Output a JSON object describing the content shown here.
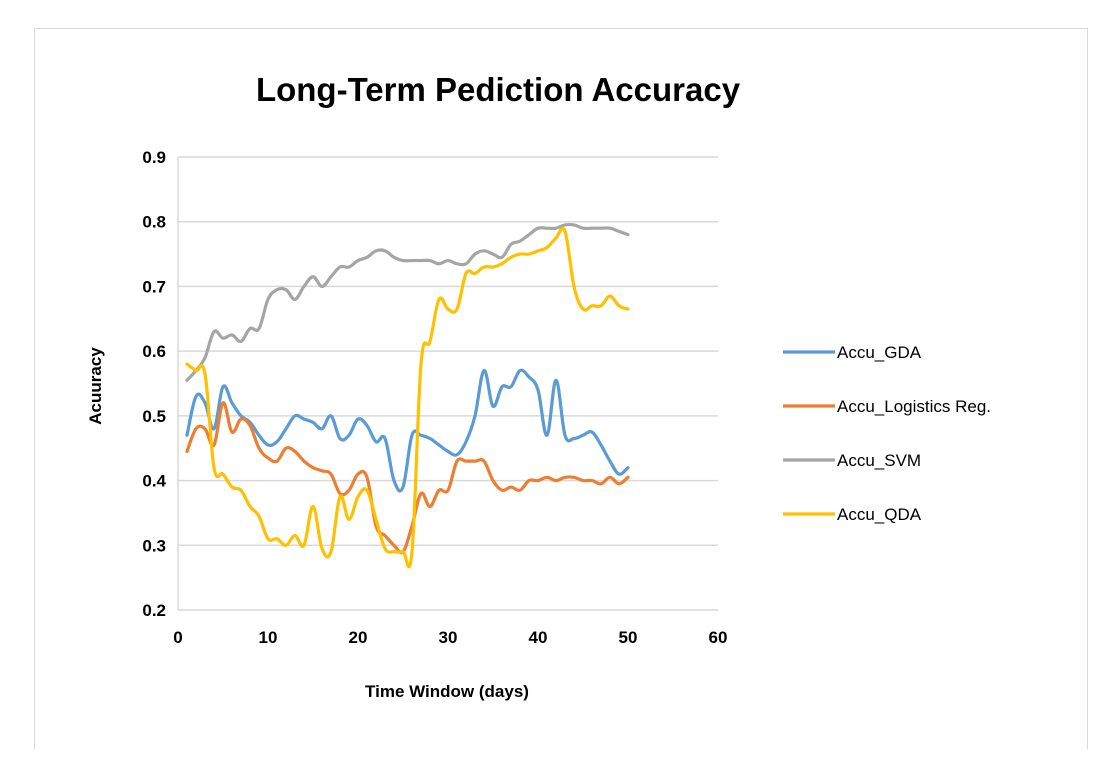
{
  "chart_data": {
    "type": "line",
    "title": "Long-Term Pediction Accuracy",
    "xlabel": "Time Window (days)",
    "ylabel": "Acuuracy",
    "xlim": [
      0,
      60
    ],
    "ylim": [
      0.2,
      0.9
    ],
    "x_ticks": [
      "0",
      "10",
      "20",
      "30",
      "40",
      "50",
      "60"
    ],
    "y_ticks": [
      "0.2",
      "0.3",
      "0.4",
      "0.5",
      "0.6",
      "0.7",
      "0.8",
      "0.9"
    ],
    "grid": "horizontal",
    "legend_position": "right",
    "x": [
      1,
      2,
      3,
      4,
      5,
      6,
      7,
      8,
      9,
      10,
      11,
      12,
      13,
      14,
      15,
      16,
      17,
      18,
      19,
      20,
      21,
      22,
      23,
      24,
      25,
      26,
      27,
      28,
      29,
      30,
      31,
      32,
      33,
      34,
      35,
      36,
      37,
      38,
      39,
      40,
      41,
      42,
      43,
      44,
      45,
      46,
      47,
      48,
      49,
      50
    ],
    "series": [
      {
        "name": "Accu_GDA",
        "color": "#5B9BD5",
        "values": [
          0.47,
          0.53,
          0.52,
          0.48,
          0.545,
          0.52,
          0.5,
          0.49,
          0.47,
          0.455,
          0.46,
          0.48,
          0.5,
          0.495,
          0.49,
          0.48,
          0.5,
          0.465,
          0.47,
          0.495,
          0.485,
          0.46,
          0.465,
          0.4,
          0.39,
          0.47,
          0.47,
          0.465,
          0.455,
          0.445,
          0.44,
          0.46,
          0.5,
          0.57,
          0.515,
          0.545,
          0.545,
          0.57,
          0.56,
          0.54,
          0.47,
          0.555,
          0.47,
          0.465,
          0.47,
          0.475,
          0.455,
          0.43,
          0.41,
          0.42
        ]
      },
      {
        "name": "Accu_Logistics Reg.",
        "color": "#ED7D31",
        "values": [
          0.445,
          0.48,
          0.48,
          0.455,
          0.52,
          0.475,
          0.495,
          0.485,
          0.45,
          0.435,
          0.43,
          0.45,
          0.445,
          0.43,
          0.42,
          0.415,
          0.41,
          0.38,
          0.385,
          0.41,
          0.405,
          0.33,
          0.315,
          0.3,
          0.29,
          0.33,
          0.38,
          0.36,
          0.385,
          0.385,
          0.43,
          0.43,
          0.43,
          0.43,
          0.4,
          0.385,
          0.39,
          0.385,
          0.4,
          0.4,
          0.405,
          0.4,
          0.405,
          0.405,
          0.4,
          0.4,
          0.395,
          0.405,
          0.395,
          0.405
        ]
      },
      {
        "name": "Accu_SVM",
        "color": "#A5A5A5",
        "values": [
          0.555,
          0.57,
          0.59,
          0.63,
          0.62,
          0.625,
          0.615,
          0.635,
          0.635,
          0.68,
          0.695,
          0.695,
          0.68,
          0.7,
          0.715,
          0.7,
          0.715,
          0.73,
          0.73,
          0.74,
          0.745,
          0.755,
          0.755,
          0.745,
          0.74,
          0.74,
          0.74,
          0.74,
          0.735,
          0.74,
          0.735,
          0.735,
          0.75,
          0.755,
          0.75,
          0.745,
          0.765,
          0.77,
          0.78,
          0.79,
          0.79,
          0.79,
          0.795,
          0.795,
          0.79,
          0.79,
          0.79,
          0.79,
          0.785,
          0.78
        ]
      },
      {
        "name": "Accu_QDA",
        "color": "#FFC000",
        "values": [
          0.58,
          0.57,
          0.565,
          0.42,
          0.41,
          0.39,
          0.385,
          0.36,
          0.345,
          0.31,
          0.31,
          0.3,
          0.315,
          0.3,
          0.36,
          0.295,
          0.29,
          0.375,
          0.34,
          0.375,
          0.385,
          0.34,
          0.295,
          0.29,
          0.29,
          0.29,
          0.58,
          0.615,
          0.68,
          0.665,
          0.665,
          0.72,
          0.72,
          0.73,
          0.73,
          0.735,
          0.745,
          0.75,
          0.75,
          0.755,
          0.76,
          0.775,
          0.785,
          0.7,
          0.665,
          0.67,
          0.67,
          0.685,
          0.67,
          0.665
        ]
      }
    ]
  }
}
